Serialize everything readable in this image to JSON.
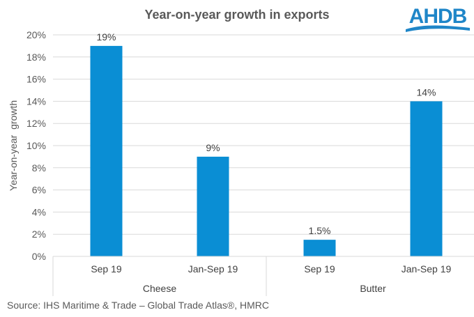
{
  "brand": {
    "logo_text": "AHDB",
    "logo_color": "#1f86c8"
  },
  "source": "Source: IHS Maritime & Trade – Global Trade Atlas®, HMRC",
  "chart_data": {
    "type": "bar",
    "title": "Year-on-year growth in exports",
    "xlabel": "",
    "ylabel": "Year-on-year  growth",
    "ylim": [
      0,
      20
    ],
    "yticks": [
      0,
      2,
      4,
      6,
      8,
      10,
      12,
      14,
      16,
      18,
      20
    ],
    "ytick_labels": [
      "0%",
      "2%",
      "4%",
      "6%",
      "8%",
      "10%",
      "12%",
      "14%",
      "16%",
      "18%",
      "20%"
    ],
    "grid": true,
    "legend": "none",
    "bar_color": "#0a8ed4",
    "groups": [
      {
        "label": "Cheese",
        "categories": [
          "Sep 19",
          "Jan-Sep 19"
        ]
      },
      {
        "label": "Butter",
        "categories": [
          "Sep 19",
          "Jan-Sep 19"
        ]
      }
    ],
    "categories": [
      "Sep 19",
      "Jan-Sep 19",
      "Sep 19",
      "Jan-Sep 19"
    ],
    "values": [
      19,
      9,
      1.5,
      14
    ],
    "data_labels": [
      "19%",
      "9%",
      "1.5%",
      "14%"
    ]
  }
}
